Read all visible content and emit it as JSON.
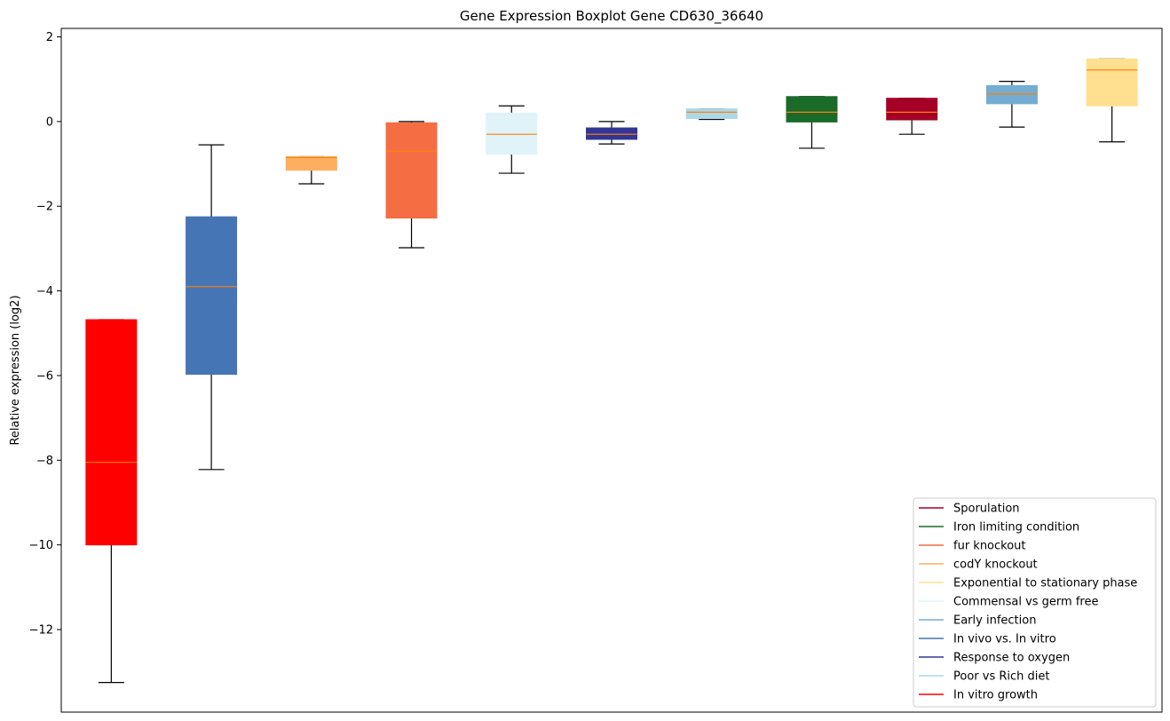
{
  "chart_data": {
    "type": "box",
    "title": "Gene Expression Boxplot Gene CD630_36640",
    "xlabel": "",
    "ylabel": "Relative expression (log2)",
    "ylim": [
      -13.95,
      2.2
    ],
    "yticks": [
      2,
      0,
      -2,
      -4,
      -6,
      -8,
      -10,
      -12
    ],
    "ytick_labels": [
      "2",
      "0",
      "−2",
      "−4",
      "−6",
      "−8",
      "−10",
      "−12"
    ],
    "grid": false,
    "legend_position": "lower-right",
    "median_color": "#ff7f0e",
    "whisker_color": "#000000",
    "boxes": [
      {
        "series": "In vitro growth",
        "color": "#ff0000",
        "whislo": -13.25,
        "q1": -10.0,
        "med": -8.05,
        "q3": -4.68,
        "whishi": -4.68
      },
      {
        "series": "In vivo vs. In vitro",
        "color": "#4575b4",
        "whislo": -8.22,
        "q1": -5.97,
        "med": -3.9,
        "q3": -2.25,
        "whishi": -0.55
      },
      {
        "series": "codY knockout",
        "color": "#fdae61",
        "whislo": -1.47,
        "q1": -1.15,
        "med": -0.85,
        "q3": -0.83,
        "whishi": -0.83
      },
      {
        "series": "fur knockout",
        "color": "#f46d43",
        "whislo": -2.98,
        "q1": -2.28,
        "med": -0.7,
        "q3": -0.03,
        "whishi": 0.0
      },
      {
        "series": "Commensal vs germ free",
        "color": "#e0f3f8",
        "whislo": -1.22,
        "q1": -0.77,
        "med": -0.3,
        "q3": 0.2,
        "whishi": 0.37
      },
      {
        "series": "Response to oxygen",
        "color": "#313695",
        "whislo": -0.53,
        "q1": -0.42,
        "med": -0.3,
        "q3": -0.15,
        "whishi": 0.0
      },
      {
        "series": "Poor vs Rich diet",
        "color": "#abd9e9",
        "whislo": 0.05,
        "q1": 0.07,
        "med": 0.22,
        "q3": 0.3,
        "whishi": 0.3
      },
      {
        "series": "Iron limiting condition",
        "color": "#1a6b2a",
        "whislo": -0.63,
        "q1": -0.01,
        "med": 0.22,
        "q3": 0.59,
        "whishi": 0.59
      },
      {
        "series": "Sporulation",
        "color": "#a50026",
        "whislo": -0.3,
        "q1": 0.04,
        "med": 0.22,
        "q3": 0.55,
        "whishi": 0.55
      },
      {
        "series": "Early infection",
        "color": "#74add1",
        "whislo": -0.13,
        "q1": 0.42,
        "med": 0.65,
        "q3": 0.85,
        "whishi": 0.95
      },
      {
        "series": "Exponential to stationary phase",
        "color": "#fee090",
        "whislo": -0.48,
        "q1": 0.37,
        "med": 1.22,
        "q3": 1.48,
        "whishi": 1.48
      }
    ],
    "legend": [
      {
        "label": "Sporulation",
        "color": "#a50026"
      },
      {
        "label": "Iron limiting condition",
        "color": "#1a6b2a"
      },
      {
        "label": "fur knockout",
        "color": "#f46d43"
      },
      {
        "label": "codY knockout",
        "color": "#fdae61"
      },
      {
        "label": "Exponential to stationary phase",
        "color": "#fee090"
      },
      {
        "label": "Commensal vs germ free",
        "color": "#e0f3f8"
      },
      {
        "label": "Early infection",
        "color": "#74add1"
      },
      {
        "label": "In vivo vs. In vitro",
        "color": "#4575b4"
      },
      {
        "label": "Response to oxygen",
        "color": "#313695"
      },
      {
        "label": "Poor vs Rich diet",
        "color": "#abd9e9"
      },
      {
        "label": "In vitro growth",
        "color": "#ff0000"
      }
    ]
  }
}
